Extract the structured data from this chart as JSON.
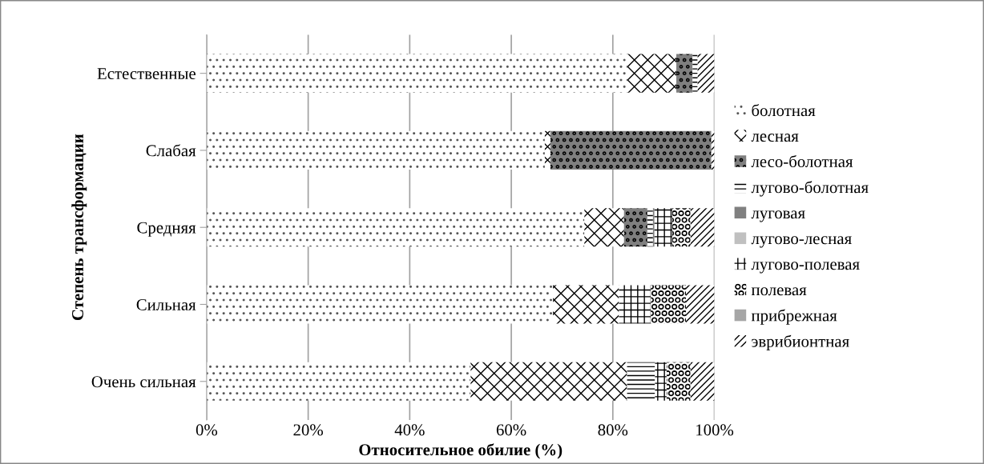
{
  "chart_data": {
    "type": "bar",
    "orientation": "horizontal",
    "stacked": true,
    "xlabel": "Относительное обилие (%)",
    "ylabel": "Степень трансформации",
    "categories": [
      "Естественные",
      "Слабая",
      "Средняя",
      "Сильная",
      "Очень сильная"
    ],
    "xlim": [
      0,
      100
    ],
    "xticks": [
      {
        "value": 0,
        "label": "0%"
      },
      {
        "value": 20,
        "label": "20%"
      },
      {
        "value": 40,
        "label": "40%"
      },
      {
        "value": 60,
        "label": "60%"
      },
      {
        "value": 80,
        "label": "80%"
      },
      {
        "value": 100,
        "label": "100%"
      }
    ],
    "grid": "x",
    "legend": "right",
    "series": [
      {
        "name": "болотная",
        "color": "#ffffff",
        "values": [
          82.9,
          66.6,
          74.4,
          68.2,
          52.0
        ]
      },
      {
        "name": "лесная",
        "color": "#000000",
        "values": [
          9.6,
          1.1,
          7.8,
          13.0,
          30.8
        ]
      },
      {
        "name": "лесо-болотная",
        "color": "#7f7f7f",
        "values": [
          3.2,
          31.7,
          4.6,
          0,
          0
        ]
      },
      {
        "name": "лугово-болотная",
        "color": "#000000",
        "values": [
          1.0,
          0,
          1.1,
          0,
          5.5
        ]
      },
      {
        "name": "луговая",
        "color": "#808080",
        "values": [
          0,
          0,
          0.3,
          0,
          0
        ]
      },
      {
        "name": "лугово-лесная",
        "color": "#c0c0c0",
        "values": [
          0,
          0,
          0,
          0,
          0
        ]
      },
      {
        "name": "лугово-полевая",
        "color": "#000000",
        "values": [
          0,
          0,
          3.5,
          6.3,
          2.3
        ]
      },
      {
        "name": "полевая",
        "color": "#000000",
        "values": [
          0,
          0,
          3.6,
          6.9,
          4.7
        ]
      },
      {
        "name": "прибрежная",
        "color": "#a6a6a6",
        "values": [
          0,
          0,
          0,
          0,
          0
        ]
      },
      {
        "name": "эврибионтная",
        "color": "#000000",
        "values": [
          3.3,
          0.6,
          4.7,
          5.6,
          4.7
        ]
      }
    ]
  }
}
